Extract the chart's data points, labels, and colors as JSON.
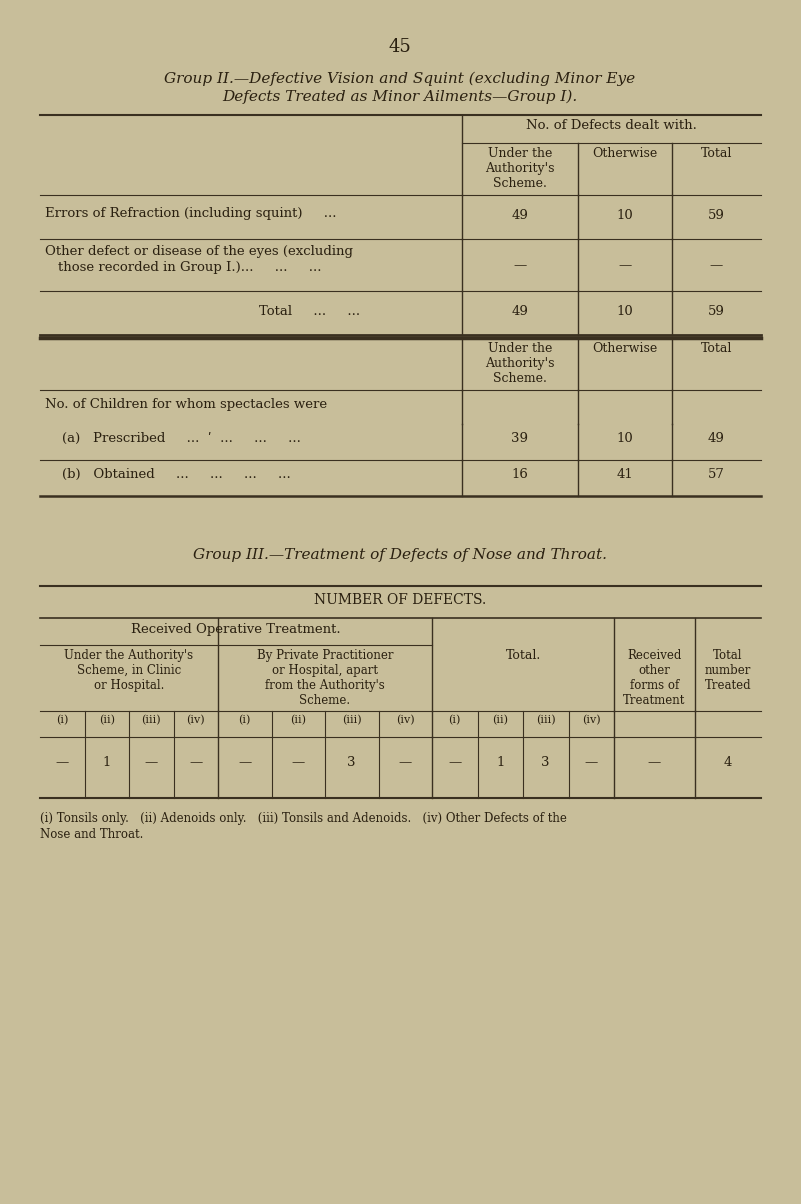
{
  "bg_color": "#c8be9a",
  "page_number": "45",
  "group2_title_line1": "Group II.—Defective Vision and Squint (excluding Minor Eye",
  "group2_title_line2": "Defects Treated as Minor Ailments—Group I).",
  "table1_header_span": "No. of Defects dealt with.",
  "table1_col_headers": [
    "Under the\nAuthority's\nScheme.",
    "Otherwise",
    "Total"
  ],
  "table2_section_label": "No. of Children for whom spectacles were",
  "group3_title": "Group III.—Treatment of Defects of Nose and Throat.",
  "table3_header": "NUMBER OF DEFECTS.",
  "table3_col_header_top": "Received Operative Treatment.",
  "table3_sub1_header": "Under the Authority's\nScheme, in Clinic\nor Hospital.",
  "table3_sub2_header": "By Private Practitioner\nor Hospital, apart\nfrom the Authority's\nScheme.",
  "table3_sub3_header": "Total.",
  "table3_sub4_header": "Received\nother\nforms of\nTreatment",
  "table3_sub5_header": "Total\nnumber\nTreated",
  "table3_roman_labels": [
    "(i)",
    "(ii)",
    "(iii)",
    "(iv)"
  ],
  "table3_data_row": [
    "—",
    "1",
    "—",
    "—",
    "—",
    "—",
    "3",
    "—",
    "—",
    "1",
    "3",
    "—",
    "—",
    "4"
  ],
  "footnote_line1": "(i) Tonsils only.   (ii) Adenoids only.   (iii) Tonsils and Adenoids.   (iv) Other Defects of the",
  "footnote_line2": "Nose and Throat."
}
